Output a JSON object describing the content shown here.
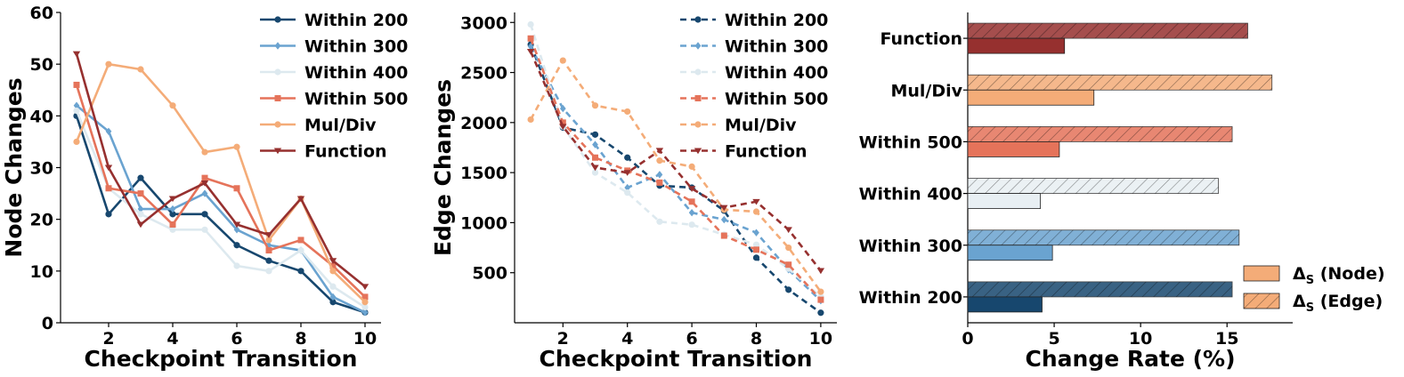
{
  "chart_data": [
    {
      "type": "line",
      "xlabel": "Checkpoint Transition",
      "ylabel": "Node Changes",
      "xlim": [
        0.5,
        10.5
      ],
      "ylim": [
        0,
        60
      ],
      "xticks": [
        2,
        4,
        6,
        8,
        10
      ],
      "yticks": [
        0,
        10,
        20,
        30,
        40,
        50,
        60
      ],
      "legend_position": "top-right",
      "line_style": "solid",
      "x": [
        1,
        2,
        3,
        4,
        5,
        6,
        7,
        8,
        9,
        10
      ],
      "series": [
        {
          "name": "Within 200",
          "color": "#17476e",
          "marker": "circle",
          "values": [
            40,
            21,
            28,
            21,
            21,
            15,
            12,
            10,
            4,
            2
          ]
        },
        {
          "name": "Within 300",
          "color": "#6aa3d0",
          "marker": "diamond",
          "values": [
            42,
            37,
            22,
            22,
            25,
            18,
            15,
            14,
            5,
            2
          ]
        },
        {
          "name": "Within 400",
          "color": "#dde9ef",
          "marker": "circle",
          "values": [
            41,
            26,
            21,
            18,
            18,
            11,
            10,
            14,
            7,
            3
          ]
        },
        {
          "name": "Within 500",
          "color": "#e5735a",
          "marker": "square",
          "values": [
            46,
            26,
            25,
            19,
            28,
            26,
            14,
            16,
            11,
            5
          ]
        },
        {
          "name": "Mul/Div",
          "color": "#f4ac78",
          "marker": "circle",
          "values": [
            35,
            50,
            49,
            42,
            33,
            34,
            16,
            24,
            10,
            4
          ]
        },
        {
          "name": "Function",
          "color": "#96302f",
          "marker": "triangle-down",
          "values": [
            52,
            30,
            19,
            24,
            27,
            19,
            17,
            24,
            12,
            7
          ]
        }
      ]
    },
    {
      "type": "line",
      "xlabel": "Checkpoint Transition",
      "ylabel": "Edge Changes",
      "xlim": [
        0.5,
        10.5
      ],
      "ylim": [
        0,
        3100
      ],
      "xticks": [
        2,
        4,
        6,
        8,
        10
      ],
      "yticks": [
        500,
        1000,
        1500,
        2000,
        2500,
        3000
      ],
      "legend_position": "top-right",
      "line_style": "dashed",
      "x": [
        1,
        2,
        3,
        4,
        5,
        6,
        7,
        8,
        9,
        10
      ],
      "series": [
        {
          "name": "Within 200",
          "color": "#17476e",
          "marker": "circle",
          "values": [
            2780,
            1950,
            1880,
            1650,
            1370,
            1350,
            1120,
            650,
            330,
            100
          ]
        },
        {
          "name": "Within 300",
          "color": "#6aa3d0",
          "marker": "diamond",
          "values": [
            2760,
            2140,
            1780,
            1350,
            1480,
            1100,
            1030,
            900,
            530,
            220
          ]
        },
        {
          "name": "Within 400",
          "color": "#dde9ef",
          "marker": "circle",
          "values": [
            2980,
            1960,
            1500,
            1300,
            1010,
            980,
            880,
            780,
            540,
            260
          ]
        },
        {
          "name": "Within 500",
          "color": "#e5735a",
          "marker": "square",
          "values": [
            2840,
            2000,
            1650,
            1520,
            1400,
            1210,
            870,
            730,
            580,
            230
          ]
        },
        {
          "name": "Mul/Div",
          "color": "#f4ac78",
          "marker": "circle",
          "values": [
            2030,
            2620,
            2170,
            2110,
            1620,
            1560,
            1130,
            1110,
            750,
            310
          ]
        },
        {
          "name": "Function",
          "color": "#96302f",
          "marker": "triangle-down",
          "values": [
            2710,
            1960,
            1550,
            1500,
            1720,
            1340,
            1150,
            1210,
            930,
            520
          ]
        }
      ]
    },
    {
      "type": "bar",
      "orientation": "horizontal",
      "xlabel": "Change Rate (%)",
      "ylabel": "",
      "xlim": [
        0,
        18.8
      ],
      "xticks": [
        0,
        5,
        10,
        15
      ],
      "categories": [
        "Within 200",
        "Within 300",
        "Within 400",
        "Within 500",
        "Mul/Div",
        "Function"
      ],
      "colors": [
        "#17476e",
        "#6aa3d0",
        "#e8eff3",
        "#e5735a",
        "#f4ac78",
        "#96302f"
      ],
      "legend_position": "bottom-right",
      "series": [
        {
          "name": "ΔS (Node)",
          "values": [
            4.3,
            4.9,
            4.2,
            5.3,
            7.3,
            5.6
          ]
        },
        {
          "name": "ΔS (Edge)",
          "values": [
            15.3,
            15.7,
            14.5,
            15.3,
            17.6,
            16.2
          ]
        }
      ],
      "legend_labels": [
        {
          "symbol": "Δ",
          "sub": "S",
          "text": " (Node)"
        },
        {
          "symbol": "Δ",
          "sub": "S",
          "text": " (Edge)"
        }
      ]
    }
  ]
}
